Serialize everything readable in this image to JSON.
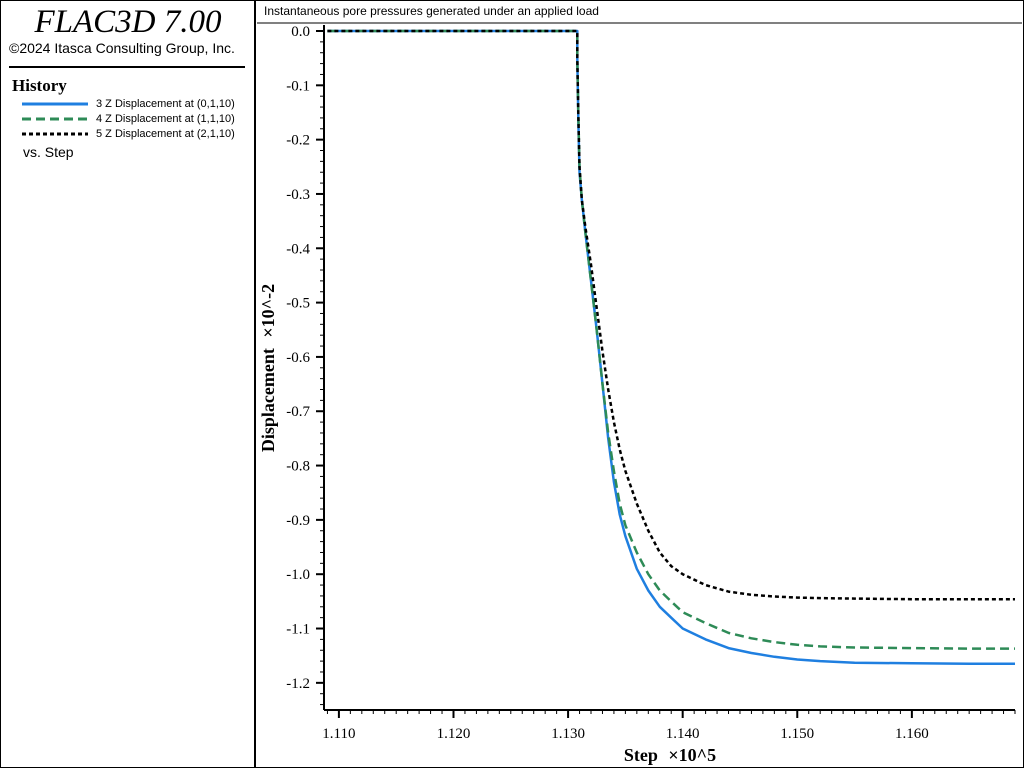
{
  "app": {
    "title": "FLAC3D 7.00",
    "copyright": "©2024 Itasca Consulting Group, Inc."
  },
  "sidebar": {
    "heading": "History",
    "vs_label": "vs. Step",
    "legend": [
      {
        "label": "3 Z Displacement at (0,1,10)",
        "color": "#1f7fe0",
        "dash": "solid"
      },
      {
        "label": "4 Z Displacement at (1,1,10)",
        "color": "#2e8b57",
        "dash": "dashed"
      },
      {
        "label": "5 Z Displacement at (2,1,10)",
        "color": "#000000",
        "dash": "dotted"
      }
    ]
  },
  "chart_data": {
    "type": "line",
    "title": "Instantaneous pore pressures generated under an applied load",
    "xlabel": "Step",
    "xlabel_suffix": "×10^5",
    "ylabel": "Displacement",
    "ylabel_suffix": "×10^-2",
    "xlim": [
      1.1087,
      1.169
    ],
    "ylim": [
      -1.25,
      0.0
    ],
    "x_ticks": [
      "1.110",
      "1.120",
      "1.130",
      "1.140",
      "1.150",
      "1.160"
    ],
    "x_tick_values": [
      1.11,
      1.12,
      1.13,
      1.14,
      1.15,
      1.16
    ],
    "y_ticks": [
      "0.0",
      "-0.1",
      "-0.2",
      "-0.3",
      "-0.4",
      "-0.5",
      "-0.6",
      "-0.7",
      "-0.8",
      "-0.9",
      "-1.0",
      "-1.1",
      "-1.2"
    ],
    "y_tick_values": [
      0.0,
      -0.1,
      -0.2,
      -0.3,
      -0.4,
      -0.5,
      -0.6,
      -0.7,
      -0.8,
      -0.9,
      -1.0,
      -1.1,
      -1.2
    ],
    "grid": false,
    "series": [
      {
        "name": "3 Z Displacement at (0,1,10)",
        "x": [
          1.109,
          1.1308,
          1.1308,
          1.1309,
          1.131,
          1.1312,
          1.1315,
          1.132,
          1.1325,
          1.133,
          1.1335,
          1.134,
          1.1345,
          1.135,
          1.136,
          1.137,
          1.138,
          1.139,
          1.14,
          1.142,
          1.144,
          1.146,
          1.148,
          1.15,
          1.152,
          1.155,
          1.16,
          1.165,
          1.169
        ],
        "y": [
          0.0,
          0.0,
          -0.05,
          -0.17,
          -0.26,
          -0.31,
          -0.37,
          -0.46,
          -0.55,
          -0.65,
          -0.75,
          -0.83,
          -0.89,
          -0.93,
          -0.99,
          -1.03,
          -1.06,
          -1.08,
          -1.1,
          -1.12,
          -1.136,
          -1.145,
          -1.152,
          -1.157,
          -1.16,
          -1.163,
          -1.164,
          -1.165,
          -1.165
        ]
      },
      {
        "name": "4 Z Displacement at (1,1,10)",
        "x": [
          1.109,
          1.1308,
          1.1308,
          1.1309,
          1.131,
          1.1312,
          1.1315,
          1.132,
          1.1325,
          1.133,
          1.1335,
          1.134,
          1.1345,
          1.135,
          1.136,
          1.137,
          1.138,
          1.139,
          1.14,
          1.142,
          1.144,
          1.146,
          1.148,
          1.15,
          1.152,
          1.155,
          1.16,
          1.165,
          1.169
        ],
        "y": [
          0.0,
          0.0,
          -0.05,
          -0.16,
          -0.25,
          -0.31,
          -0.37,
          -0.46,
          -0.55,
          -0.65,
          -0.74,
          -0.81,
          -0.87,
          -0.91,
          -0.96,
          -1.0,
          -1.03,
          -1.05,
          -1.07,
          -1.09,
          -1.108,
          -1.118,
          -1.125,
          -1.13,
          -1.133,
          -1.135,
          -1.136,
          -1.137,
          -1.137
        ]
      },
      {
        "name": "5 Z Displacement at (2,1,10)",
        "x": [
          1.109,
          1.1308,
          1.1308,
          1.1309,
          1.131,
          1.1312,
          1.1315,
          1.132,
          1.1325,
          1.133,
          1.1335,
          1.134,
          1.1345,
          1.135,
          1.136,
          1.137,
          1.138,
          1.139,
          1.14,
          1.142,
          1.144,
          1.146,
          1.148,
          1.15,
          1.152,
          1.155,
          1.16,
          1.165,
          1.169
        ],
        "y": [
          0.0,
          0.0,
          -0.05,
          -0.16,
          -0.25,
          -0.31,
          -0.36,
          -0.43,
          -0.51,
          -0.59,
          -0.66,
          -0.72,
          -0.77,
          -0.81,
          -0.87,
          -0.92,
          -0.96,
          -0.985,
          -1.0,
          -1.02,
          -1.032,
          -1.038,
          -1.041,
          -1.043,
          -1.044,
          -1.045,
          -1.046,
          -1.046,
          -1.046
        ]
      }
    ]
  }
}
